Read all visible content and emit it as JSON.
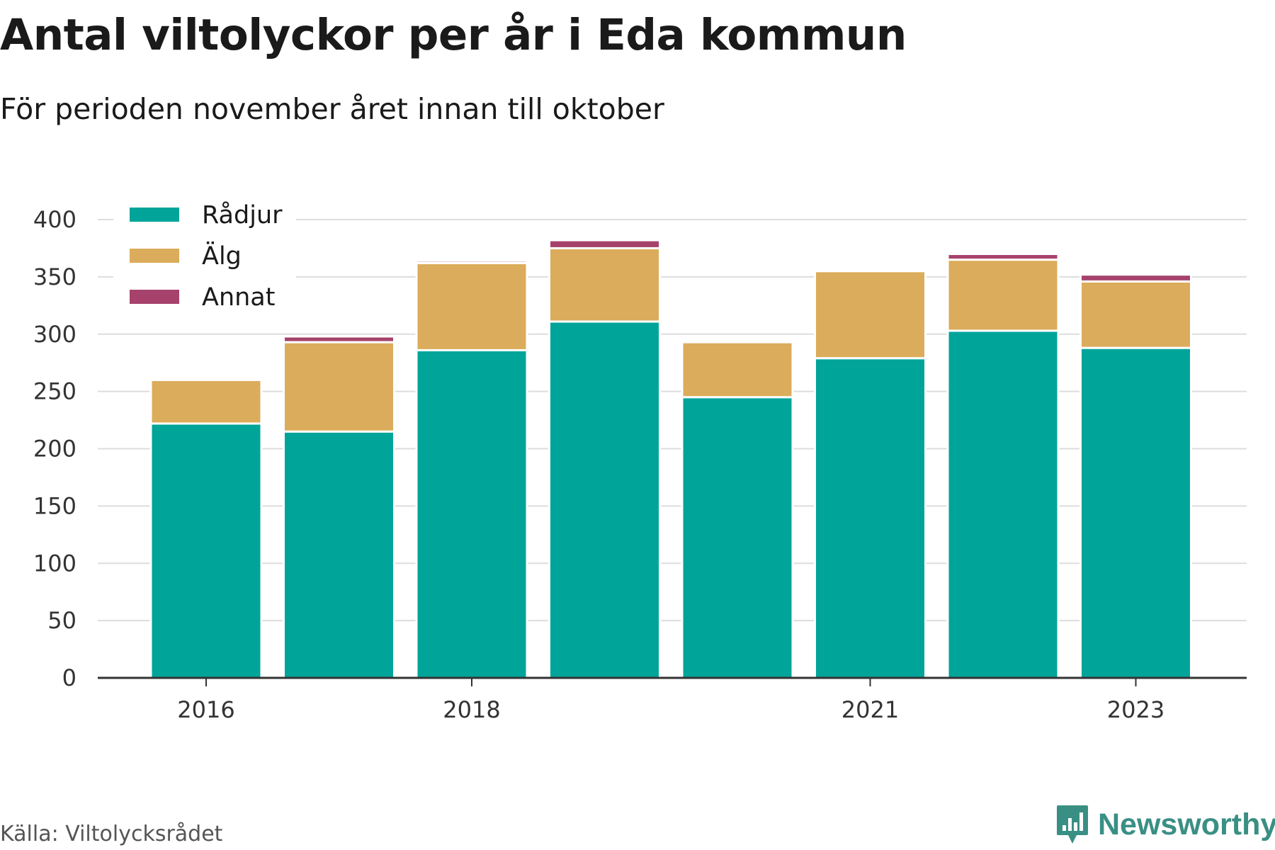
{
  "title": "Antal viltolyckor per år i Eda kommun",
  "subtitle": "För perioden november året innan till oktober",
  "source": "Källa: Viltolycksrådet",
  "brand": {
    "name": "Newsworthy",
    "logo_icon": "bar-chart-icon"
  },
  "colors": {
    "radjur": "#00a499",
    "alg": "#dbac5b",
    "annat": "#a6426c",
    "grid": "#dddddd",
    "axis": "#333333"
  },
  "chart_data": {
    "type": "bar",
    "stacked": true,
    "categories": [
      "2016",
      "2017",
      "2018",
      "2019",
      "2020",
      "2021",
      "2022",
      "2023"
    ],
    "x_tick_labels": [
      "2016",
      "2018",
      "2021",
      "2023"
    ],
    "series": [
      {
        "name": "Rådjur",
        "color": "#00a499",
        "values": [
          222,
          215,
          286,
          311,
          245,
          279,
          303,
          288
        ]
      },
      {
        "name": "Älg",
        "color": "#dbac5b",
        "values": [
          38,
          78,
          76,
          64,
          48,
          76,
          62,
          58
        ]
      },
      {
        "name": "Annat",
        "color": "#a6426c",
        "values": [
          0,
          5,
          2,
          7,
          1,
          0,
          5,
          6
        ]
      }
    ],
    "ylim": [
      0,
      400
    ],
    "yticks": [
      0,
      50,
      100,
      150,
      200,
      250,
      300,
      350,
      400
    ],
    "grid": true,
    "legend_position": "top-left"
  }
}
